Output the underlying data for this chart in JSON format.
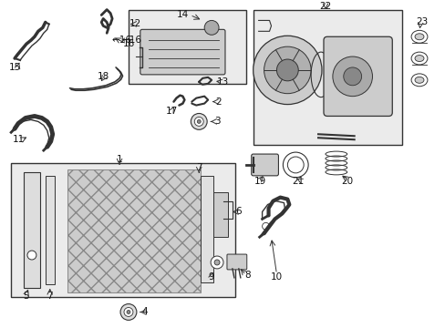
{
  "background_color": "#ffffff",
  "fig_width": 4.89,
  "fig_height": 3.6,
  "dpi": 100,
  "line_color": "#333333",
  "text_color": "#111111",
  "font_size": 7.5,
  "box_fill": "#ebebeb"
}
